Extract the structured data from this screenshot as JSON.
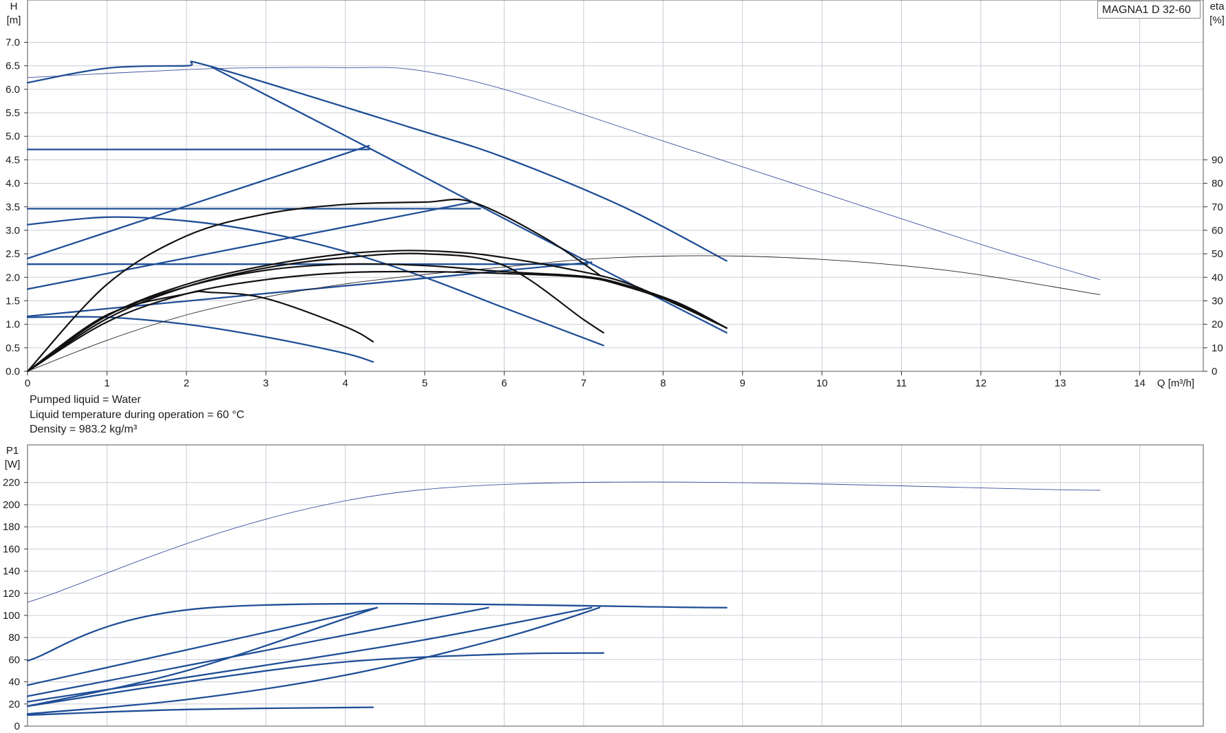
{
  "chart_data": [
    {
      "type": "line",
      "title": "MAGNA1 D 32-60",
      "xlabel": "Q [m³/h]",
      "ylabel": "H\n[m]",
      "y2label": "eta\n[%]",
      "xlim": [
        0,
        14.8
      ],
      "ylim": [
        0,
        7.9
      ],
      "y2lim": [
        0,
        158
      ],
      "grid": true,
      "x_ticks": [
        0,
        1,
        2,
        3,
        4,
        5,
        6,
        7,
        8,
        9,
        10,
        11,
        12,
        13,
        14
      ],
      "y_ticks": [
        0.0,
        0.5,
        1.0,
        1.5,
        2.0,
        2.5,
        3.0,
        3.5,
        4.0,
        4.5,
        5.0,
        5.5,
        6.0,
        6.5,
        7.0
      ],
      "y2_ticks": [
        0,
        10,
        20,
        30,
        40,
        50,
        60,
        70,
        80,
        90
      ],
      "series": [
        {
          "style": "blue",
          "x": [
            0,
            1,
            2,
            2.3,
            4.8,
            6,
            7.5,
            8.8
          ],
          "y": [
            6.14,
            6.45,
            6.5,
            6.49,
            5.2,
            4.55,
            3.5,
            2.35
          ]
        },
        {
          "style": "blue",
          "x": [
            2.3,
            4.3,
            5.6,
            7.2,
            8.8
          ],
          "y": [
            6.49,
            4.75,
            3.6,
            2.2,
            0.82
          ]
        },
        {
          "style": "blue",
          "x": [
            0,
            4.3
          ],
          "y": [
            4.72,
            4.72
          ]
        },
        {
          "style": "blue",
          "x": [
            0,
            4.3
          ],
          "y": [
            2.4,
            4.8
          ]
        },
        {
          "style": "blue",
          "x": [
            0,
            5.7
          ],
          "y": [
            3.46,
            3.46
          ]
        },
        {
          "style": "blue",
          "x": [
            0,
            5.6
          ],
          "y": [
            1.75,
            3.6
          ]
        },
        {
          "style": "blue",
          "x": [
            0,
            7.05
          ],
          "y": [
            2.28,
            2.28
          ]
        },
        {
          "style": "blue",
          "x": [
            0,
            7.1
          ],
          "y": [
            1.17,
            2.32
          ]
        },
        {
          "style": "blue",
          "x": [
            0,
            1,
            2,
            3,
            4,
            5,
            6,
            7.25
          ],
          "y": [
            3.12,
            3.28,
            3.2,
            2.95,
            2.55,
            2.0,
            1.35,
            0.55
          ]
        },
        {
          "style": "blue",
          "x": [
            0,
            1,
            2,
            3,
            4,
            4.35
          ],
          "y": [
            1.15,
            1.15,
            1.0,
            0.73,
            0.38,
            0.2
          ]
        },
        {
          "style": "black",
          "x": [
            0,
            1,
            2,
            3,
            4,
            5,
            5.6,
            6.5,
            7.2
          ],
          "y": [
            0,
            1.85,
            2.88,
            3.35,
            3.55,
            3.6,
            3.6,
            2.85,
            2.05
          ]
        },
        {
          "style": "black",
          "x": [
            0,
            1,
            2,
            3,
            4,
            5,
            6,
            7,
            7.25
          ],
          "y": [
            0,
            1.12,
            1.8,
            2.2,
            2.42,
            2.5,
            2.25,
            1.1,
            0.82
          ]
        },
        {
          "style": "black",
          "x": [
            0,
            1,
            2,
            3,
            4,
            4.8,
            5.5,
            6,
            6.8,
            7.5,
            8.2,
            8.8
          ],
          "y": [
            0,
            1.18,
            1.85,
            2.25,
            2.5,
            2.57,
            2.52,
            2.42,
            2.18,
            1.9,
            1.4,
            0.92
          ]
        },
        {
          "style": "black",
          "x": [
            0,
            1,
            2,
            3,
            4,
            5,
            6,
            7,
            7.5,
            8.2,
            8.8
          ],
          "y": [
            0,
            1.18,
            1.8,
            2.15,
            2.28,
            2.25,
            2.12,
            2.02,
            1.85,
            1.45,
            0.92
          ]
        },
        {
          "style": "black",
          "x": [
            0,
            1,
            2,
            3,
            4,
            5,
            6,
            7,
            7.5,
            8.2,
            8.8
          ],
          "y": [
            0,
            1.05,
            1.65,
            1.95,
            2.1,
            2.12,
            2.08,
            2.0,
            1.82,
            1.42,
            0.92
          ]
        },
        {
          "style": "black",
          "x": [
            0,
            1,
            2,
            2.3,
            3,
            4,
            4.35
          ],
          "y": [
            0,
            1.2,
            1.65,
            1.68,
            1.55,
            0.95,
            0.63
          ]
        },
        {
          "style": "eta_blue",
          "x": [
            0,
            2,
            3,
            4,
            4.85,
            6,
            8,
            10,
            12,
            13.5
          ],
          "y": [
            6.25,
            6.42,
            6.46,
            6.46,
            6.42,
            6.0,
            4.9,
            3.8,
            2.7,
            1.95
          ]
        },
        {
          "style": "eta_black",
          "x": [
            0,
            1,
            2,
            3,
            4,
            5,
            6,
            7,
            8,
            9,
            10,
            11,
            12,
            13.5
          ],
          "y": [
            0,
            0.66,
            1.2,
            1.58,
            1.86,
            2.06,
            2.22,
            2.38,
            2.45,
            2.45,
            2.38,
            2.25,
            2.05,
            1.63
          ]
        }
      ]
    },
    {
      "type": "line",
      "ylabel": "P1\n[W]",
      "xlim": [
        0,
        14.8
      ],
      "ylim": [
        0,
        254
      ],
      "grid": true,
      "y_ticks": [
        0,
        20,
        40,
        60,
        80,
        100,
        120,
        140,
        160,
        180,
        200,
        220
      ],
      "series": [
        {
          "style": "thin",
          "x": [
            0,
            4.9,
            13.5
          ],
          "y": [
            112,
            213,
            213
          ]
        },
        {
          "style": "blue",
          "x": [
            0,
            2.3,
            8.8
          ],
          "y": [
            59,
            107,
            107
          ]
        },
        {
          "style": "blue",
          "x": [
            0,
            4.4
          ],
          "y": [
            37,
            107
          ]
        },
        {
          "style": "blue",
          "x": [
            0,
            2,
            4.4
          ],
          "y": [
            18,
            50,
            107
          ]
        },
        {
          "style": "blue",
          "x": [
            0,
            5.8
          ],
          "y": [
            27,
            107
          ]
        },
        {
          "style": "blue",
          "x": [
            0,
            3,
            5,
            7.1
          ],
          "y": [
            22,
            55,
            78,
            107
          ]
        },
        {
          "style": "blue",
          "x": [
            0,
            2,
            4,
            6,
            7.2
          ],
          "y": [
            11,
            24,
            46,
            80,
            107
          ]
        },
        {
          "style": "blue",
          "x": [
            0,
            2,
            4,
            6,
            7.25
          ],
          "y": [
            18,
            40,
            58,
            65,
            66
          ]
        },
        {
          "style": "blue",
          "x": [
            0,
            2,
            4.35
          ],
          "y": [
            10,
            15,
            17
          ]
        }
      ]
    }
  ],
  "notes": {
    "line1": "Pumped liquid = Water",
    "line2": "Liquid temperature during operation = 60 °C",
    "line3": "Density = 983.2 kg/m³"
  }
}
